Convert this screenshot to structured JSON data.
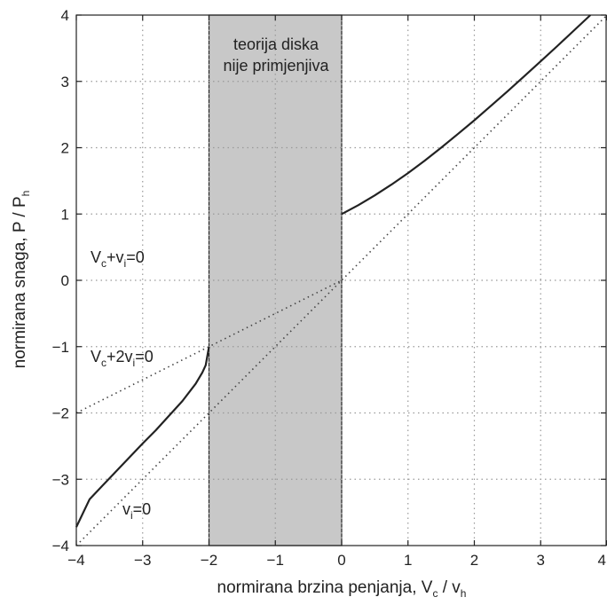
{
  "chart_data": {
    "type": "line",
    "xlabel": {
      "main": "normirana brzina penjanja, V",
      "sub1": "c",
      "mid": " / v",
      "sub2": "h"
    },
    "ylabel": {
      "main": "normirana snaga, P / P",
      "sub": "h"
    },
    "xlim": [
      -4,
      4
    ],
    "ylim": [
      -4,
      4
    ],
    "xticks": [
      "−4",
      "−3",
      "−2",
      "−1",
      "0",
      "1",
      "2",
      "3",
      "4"
    ],
    "yticks": [
      "−4",
      "−3",
      "−2",
      "−1",
      "0",
      "1",
      "2",
      "3",
      "4"
    ],
    "grid": true,
    "shaded_region": {
      "x": [
        -2,
        0
      ],
      "label_line1": "teorija diska",
      "label_line2": "nije primjenjiva",
      "color": "#c8c8c8"
    },
    "series": [
      {
        "style": "solid",
        "points": [
          [
            0,
            1.0
          ],
          [
            0.25,
            1.133
          ],
          [
            0.5,
            1.281
          ],
          [
            0.75,
            1.443
          ],
          [
            1.0,
            1.618
          ],
          [
            1.25,
            1.804
          ],
          [
            1.5,
            2.0
          ],
          [
            1.75,
            2.205
          ],
          [
            2.0,
            2.414
          ],
          [
            2.25,
            2.631
          ],
          [
            2.5,
            2.851
          ],
          [
            2.75,
            3.076
          ],
          [
            3.0,
            3.303
          ],
          [
            3.25,
            3.532
          ],
          [
            3.5,
            3.766
          ],
          [
            3.75,
            4.0
          ]
        ]
      },
      {
        "style": "solid",
        "points": [
          [
            -2.0,
            -1.0
          ],
          [
            -2.05,
            -1.28
          ],
          [
            -2.1,
            -1.39
          ],
          [
            -2.2,
            -1.56
          ],
          [
            -2.4,
            -1.82
          ],
          [
            -2.6,
            -2.04
          ],
          [
            -2.8,
            -2.26
          ],
          [
            -3.0,
            -2.46
          ],
          [
            -3.2,
            -2.67
          ],
          [
            -3.4,
            -2.88
          ],
          [
            -3.6,
            -3.09
          ],
          [
            -3.8,
            -3.3
          ],
          [
            -4.0,
            -3.72
          ]
        ]
      },
      {
        "style": "dotted",
        "points": [
          [
            -4,
            -4
          ],
          [
            4,
            4
          ]
        ]
      },
      {
        "style": "dotted",
        "points": [
          [
            -4,
            -2
          ],
          [
            0,
            0
          ]
        ]
      }
    ],
    "annotations": [
      {
        "main": "V",
        "sub1": "c",
        "mid": "+v",
        "sub2": "i",
        "tail": "=0"
      },
      {
        "main": "V",
        "sub1": "c",
        "mid": "+2v",
        "sub2": "i",
        "tail": "=0"
      },
      {
        "main": "v",
        "sub1": "i",
        "mid": "=0",
        "sub2": "",
        "tail": ""
      }
    ],
    "colors": {
      "line": "#222222",
      "grid": "#999999",
      "shade": "#c8c8c8"
    }
  }
}
